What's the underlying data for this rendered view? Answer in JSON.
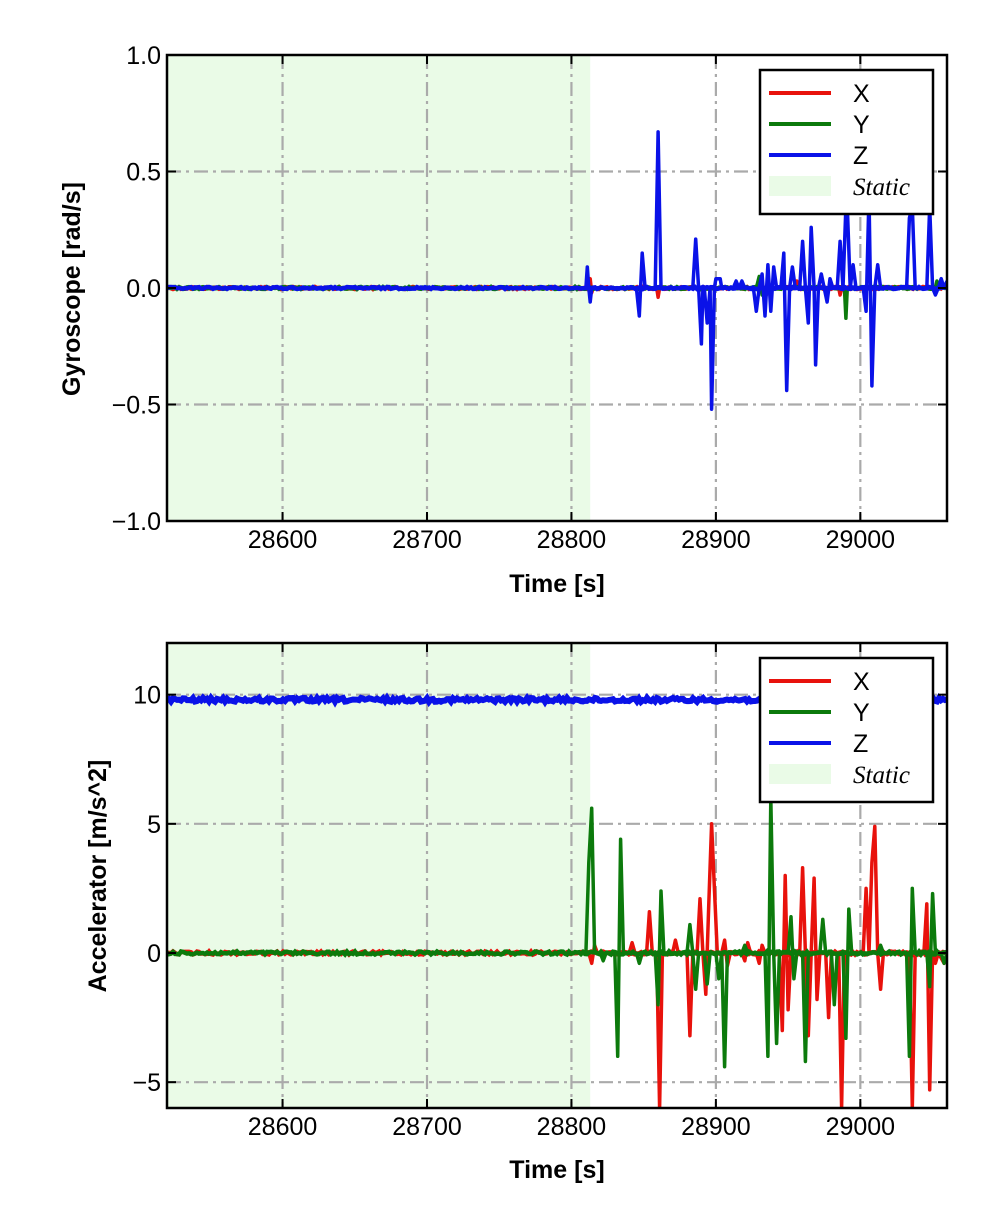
{
  "chart_data": [
    {
      "type": "line",
      "xlabel": "Time [s]",
      "ylabel": "Gyroscope [rad/s]",
      "xlim": [
        28520,
        29060
      ],
      "ylim": [
        -1.0,
        1.0
      ],
      "xticks": [
        28600,
        28700,
        28800,
        28900,
        29000
      ],
      "xtick_labels": [
        "28600",
        "28700",
        "28800",
        "28900",
        "29000"
      ],
      "yticks": [
        -1.0,
        -0.5,
        0.0,
        0.5,
        1.0
      ],
      "ytick_labels": [
        "−1.0",
        "−0.5",
        "0.0",
        "0.5",
        "1.0"
      ],
      "grid": true,
      "legend_position": "top-right",
      "static_span": [
        28520,
        28813
      ],
      "static_label": "Static",
      "series": [
        {
          "name": "X",
          "color": "#e8120c",
          "baseline": 0.0,
          "points": [
            [
              28812,
              0
            ],
            [
              28813,
              0.04
            ],
            [
              28814,
              -0.02
            ],
            [
              28815,
              0
            ],
            [
              28859,
              0
            ],
            [
              28860,
              -0.04
            ],
            [
              28861,
              0
            ],
            [
              28934,
              0
            ],
            [
              28935,
              -0.03
            ],
            [
              28936,
              0
            ],
            [
              28955,
              0
            ],
            [
              28956,
              0.03
            ],
            [
              28957,
              0
            ],
            [
              28985,
              0
            ],
            [
              28986,
              -0.03
            ],
            [
              28987,
              0
            ]
          ]
        },
        {
          "name": "Y",
          "color": "#0c7a0c",
          "baseline": 0.0,
          "points": [
            [
              28928,
              0
            ],
            [
              28930,
              0.05
            ],
            [
              28932,
              -0.03
            ],
            [
              28934,
              0
            ],
            [
              28989,
              0
            ],
            [
              28990,
              -0.13
            ],
            [
              28991,
              0
            ],
            [
              29052,
              0
            ],
            [
              29053,
              0.03
            ],
            [
              29054,
              0
            ]
          ]
        },
        {
          "name": "Z",
          "color": "#0a12e8",
          "baseline": 0.0,
          "points": [
            [
              28810,
              0
            ],
            [
              28811,
              0.09
            ],
            [
              28812,
              0
            ],
            [
              28813,
              -0.06
            ],
            [
              28814,
              0
            ],
            [
              28845,
              0
            ],
            [
              28847,
              -0.12
            ],
            [
              28849,
              0.15
            ],
            [
              28851,
              0
            ],
            [
              28858,
              0
            ],
            [
              28860,
              0.67
            ],
            [
              28862,
              0
            ],
            [
              28884,
              0
            ],
            [
              28886,
              0.21
            ],
            [
              28888,
              0
            ],
            [
              28890,
              -0.24
            ],
            [
              28891,
              0
            ],
            [
              28892,
              0
            ],
            [
              28894,
              -0.15
            ],
            [
              28896,
              0
            ],
            [
              28897,
              -0.52
            ],
            [
              28899,
              0
            ],
            [
              28900,
              0.04
            ],
            [
              28903,
              0.04
            ],
            [
              28904,
              0
            ],
            [
              28912,
              0
            ],
            [
              28914,
              0.03
            ],
            [
              28916,
              0
            ],
            [
              28918,
              0.03
            ],
            [
              28920,
              0
            ],
            [
              28926,
              0
            ],
            [
              28928,
              -0.1
            ],
            [
              28930,
              0
            ],
            [
              28932,
              0.06
            ],
            [
              28934,
              -0.12
            ],
            [
              28936,
              0.1
            ],
            [
              28938,
              -0.1
            ],
            [
              28940,
              0.09
            ],
            [
              28942,
              0
            ],
            [
              28945,
              0
            ],
            [
              28947,
              0.15
            ],
            [
              28949,
              -0.44
            ],
            [
              28951,
              0
            ],
            [
              28953,
              0.09
            ],
            [
              28955,
              0
            ],
            [
              28958,
              0
            ],
            [
              28960,
              0.2
            ],
            [
              28962,
              0
            ],
            [
              28964,
              -0.15
            ],
            [
              28966,
              0.26
            ],
            [
              28968,
              0
            ],
            [
              28969,
              -0.33
            ],
            [
              28971,
              0
            ],
            [
              28973,
              0.06
            ],
            [
              28975,
              0
            ],
            [
              28977,
              -0.06
            ],
            [
              28979,
              0.04
            ],
            [
              28981,
              0
            ],
            [
              28984,
              0
            ],
            [
              28986,
              0.2
            ],
            [
              28988,
              0
            ],
            [
              28990,
              0.35
            ],
            [
              28991,
              0.35
            ],
            [
              28993,
              0
            ],
            [
              28995,
              0.1
            ],
            [
              28997,
              0
            ],
            [
              29002,
              0
            ],
            [
              29004,
              -0.1
            ],
            [
              29006,
              0.4
            ],
            [
              29008,
              -0.42
            ],
            [
              29010,
              0
            ],
            [
              29012,
              0.1
            ],
            [
              29014,
              0
            ],
            [
              29032,
              0
            ],
            [
              29034,
              0.3
            ],
            [
              29036,
              0.35
            ],
            [
              29038,
              0
            ],
            [
              29046,
              0
            ],
            [
              29048,
              0.35
            ],
            [
              29050,
              0
            ],
            [
              29052,
              -0.03
            ],
            [
              29054,
              0
            ],
            [
              29056,
              0.04
            ],
            [
              29058,
              0
            ],
            [
              29060,
              0.03
            ]
          ]
        }
      ]
    },
    {
      "type": "line",
      "xlabel": "Time [s]",
      "ylabel": "Accelerator [m/s^2]",
      "xlim": [
        28520,
        29060
      ],
      "ylim": [
        -6,
        12
      ],
      "xticks": [
        28600,
        28700,
        28800,
        28900,
        29000
      ],
      "xtick_labels": [
        "28600",
        "28700",
        "28800",
        "28900",
        "29000"
      ],
      "yticks": [
        -5,
        0,
        5,
        10
      ],
      "ytick_labels": [
        "−5",
        "0",
        "5",
        "10"
      ],
      "grid": true,
      "legend_position": "top-right",
      "static_span": [
        28520,
        28813
      ],
      "static_label": "Static",
      "series": [
        {
          "name": "X",
          "color": "#e8120c",
          "baseline": 0.0,
          "points": [
            [
              28812,
              0
            ],
            [
              28814,
              -0.4
            ],
            [
              28816,
              0.3
            ],
            [
              28818,
              0
            ],
            [
              28840,
              0
            ],
            [
              28842,
              0.4
            ],
            [
              28844,
              0
            ],
            [
              28852,
              0
            ],
            [
              28854,
              1.6
            ],
            [
              28856,
              0
            ],
            [
              28859,
              0
            ],
            [
              28861,
              -6
            ],
            [
              28863,
              0
            ],
            [
              28870,
              0
            ],
            [
              28872,
              0.5
            ],
            [
              28874,
              0
            ],
            [
              28880,
              0
            ],
            [
              28882,
              -3.2
            ],
            [
              28884,
              0
            ],
            [
              28887,
              0
            ],
            [
              28889,
              2.1
            ],
            [
              28891,
              0
            ],
            [
              28893,
              -1.6
            ],
            [
              28895,
              1.8
            ],
            [
              28897,
              5
            ],
            [
              28899,
              2.5
            ],
            [
              28901,
              0
            ],
            [
              28904,
              0
            ],
            [
              28906,
              0.5
            ],
            [
              28908,
              -0.5
            ],
            [
              28910,
              0
            ],
            [
              28918,
              0
            ],
            [
              28920,
              -0.3
            ],
            [
              28922,
              0.4
            ],
            [
              28924,
              0
            ],
            [
              28928,
              0
            ],
            [
              28930,
              -0.4
            ],
            [
              28932,
              0.3
            ],
            [
              28934,
              0
            ],
            [
              28944,
              0
            ],
            [
              28946,
              -3
            ],
            [
              28948,
              3
            ],
            [
              28950,
              -2.2
            ],
            [
              28952,
              0
            ],
            [
              28958,
              0
            ],
            [
              28960,
              3.3
            ],
            [
              28962,
              0
            ],
            [
              28964,
              -3.2
            ],
            [
              28966,
              0
            ],
            [
              28968,
              2.9
            ],
            [
              28970,
              -1.8
            ],
            [
              28972,
              0
            ],
            [
              28976,
              0
            ],
            [
              28978,
              -2.5
            ],
            [
              28980,
              0
            ],
            [
              28985,
              0
            ],
            [
              28987,
              -6
            ],
            [
              28989,
              0
            ],
            [
              29002,
              0
            ],
            [
              29004,
              2.5
            ],
            [
              29006,
              0
            ],
            [
              29008,
              3.5
            ],
            [
              29010,
              4.9
            ],
            [
              29012,
              0
            ],
            [
              29014,
              -1.4
            ],
            [
              29016,
              0
            ],
            [
              29034,
              0
            ],
            [
              29036,
              -6
            ],
            [
              29038,
              0
            ],
            [
              29044,
              0
            ],
            [
              29046,
              1.9
            ],
            [
              29048,
              -5.3
            ],
            [
              29050,
              0
            ],
            [
              29052,
              -0.4
            ],
            [
              29054,
              0
            ],
            [
              29058,
              -0.4
            ],
            [
              29060,
              0
            ]
          ]
        },
        {
          "name": "Y",
          "color": "#0c7a0c",
          "baseline": 0.0,
          "points": [
            [
              28810,
              0
            ],
            [
              28812,
              3.5
            ],
            [
              28814,
              5.6
            ],
            [
              28816,
              0
            ],
            [
              28820,
              0
            ],
            [
              28822,
              -0.3
            ],
            [
              28824,
              0
            ],
            [
              28830,
              0
            ],
            [
              28832,
              -4
            ],
            [
              28834,
              4.4
            ],
            [
              28836,
              0
            ],
            [
              28845,
              0
            ],
            [
              28847,
              -0.4
            ],
            [
              28849,
              0
            ],
            [
              28858,
              0
            ],
            [
              28860,
              -2
            ],
            [
              28862,
              2.4
            ],
            [
              28864,
              0
            ],
            [
              28880,
              0
            ],
            [
              28882,
              1.1
            ],
            [
              28884,
              0
            ],
            [
              28886,
              -1.4
            ],
            [
              28888,
              0
            ],
            [
              28892,
              0
            ],
            [
              28894,
              -1.2
            ],
            [
              28896,
              0
            ],
            [
              28900,
              0
            ],
            [
              28902,
              -1
            ],
            [
              28904,
              0
            ],
            [
              28906,
              -4.4
            ],
            [
              28908,
              0
            ],
            [
              28918,
              0
            ],
            [
              28920,
              0.3
            ],
            [
              28922,
              0
            ],
            [
              28934,
              0
            ],
            [
              28936,
              -4
            ],
            [
              28938,
              6
            ],
            [
              28940,
              0
            ],
            [
              28942,
              -3.5
            ],
            [
              28944,
              0
            ],
            [
              28950,
              0
            ],
            [
              28952,
              1.4
            ],
            [
              28954,
              -1
            ],
            [
              28956,
              0
            ],
            [
              28960,
              0
            ],
            [
              28962,
              -4.2
            ],
            [
              28964,
              0
            ],
            [
              28972,
              0
            ],
            [
              28974,
              1.3
            ],
            [
              28976,
              0
            ],
            [
              28980,
              0
            ],
            [
              28982,
              -2
            ],
            [
              28984,
              0
            ],
            [
              28988,
              0
            ],
            [
              28990,
              -3.3
            ],
            [
              28992,
              1.7
            ],
            [
              28994,
              0
            ],
            [
              29012,
              0
            ],
            [
              29014,
              0.3
            ],
            [
              29016,
              0
            ],
            [
              29032,
              0
            ],
            [
              29034,
              -4
            ],
            [
              29036,
              2.5
            ],
            [
              29038,
              0
            ],
            [
              29046,
              0
            ],
            [
              29048,
              -1.3
            ],
            [
              29050,
              2.3
            ],
            [
              29052,
              0
            ],
            [
              29056,
              0
            ],
            [
              29058,
              -0.4
            ],
            [
              29060,
              0
            ]
          ]
        },
        {
          "name": "Z",
          "color": "#0a12e8",
          "baseline": 9.8,
          "points": [
            [
              28520,
              9.8
            ],
            [
              29060,
              9.8
            ]
          ]
        }
      ]
    }
  ]
}
